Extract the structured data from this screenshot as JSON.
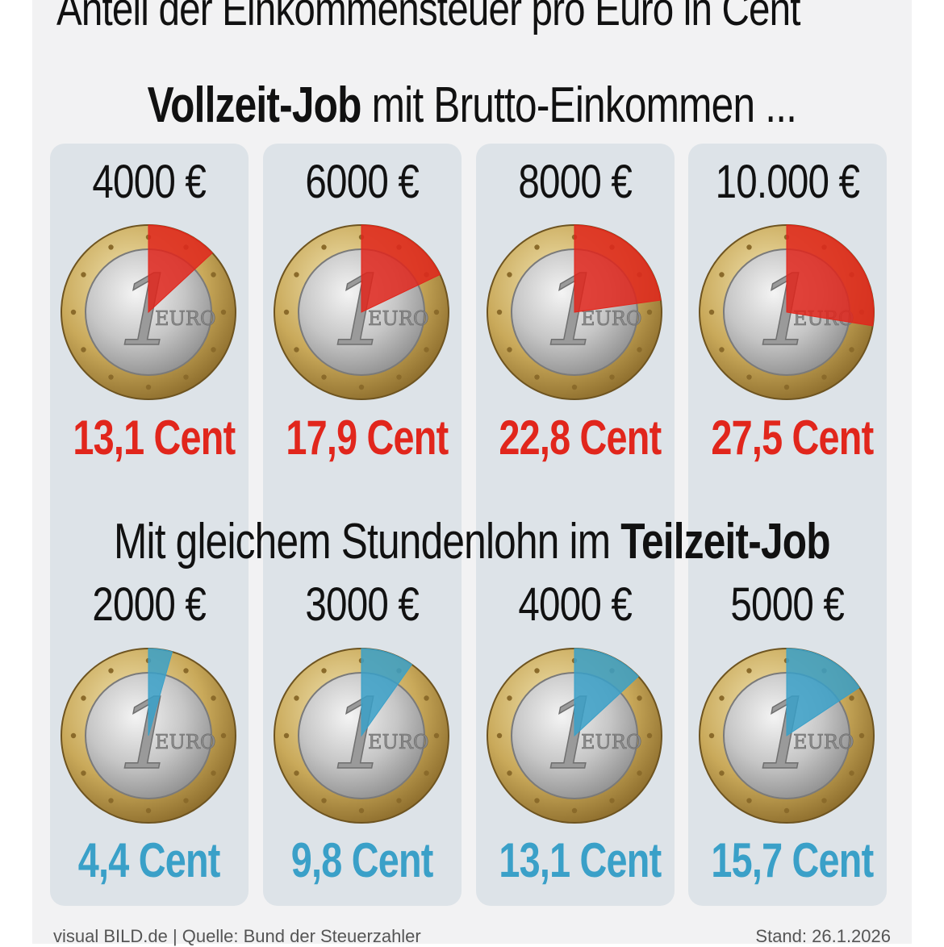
{
  "title": "Anteil der Einkommensteuer pro Euro in Cent",
  "colors": {
    "fulltime": "#e1261c",
    "parttime": "#3aa0c8",
    "column_bg": "#dde3e8"
  },
  "sections": {
    "fulltime": {
      "bold": "Vollzeit-Job",
      "rest": " mit Brutto-Einkommen ..."
    },
    "parttime": {
      "rest": "Mit gleichem Stundenlohn im ",
      "bold": "Teilzeit-Job"
    }
  },
  "chart_data": [
    {
      "type": "pie",
      "title": "Vollzeit-Job mit Brutto-Einkommen ...",
      "categories": [
        "4000 €",
        "6000 €",
        "8000 €",
        "10.000 €"
      ],
      "values": [
        13.1,
        17.9,
        22.8,
        27.5
      ],
      "labels": [
        "13,1 Cent",
        "17,9 Cent",
        "22,8 Cent",
        "27,5 Cent"
      ],
      "unit": "Cent pro Euro",
      "total": 100
    },
    {
      "type": "pie",
      "title": "Mit gleichem Stundenlohn im Teilzeit-Job",
      "categories": [
        "2000 €",
        "3000 €",
        "4000 €",
        "5000 €"
      ],
      "values": [
        4.4,
        9.8,
        13.1,
        15.7
      ],
      "labels": [
        "4,4 Cent",
        "9,8 Cent",
        "13,1 Cent",
        "15,7 Cent"
      ],
      "unit": "Cent pro Euro",
      "total": 100
    }
  ],
  "coin": {
    "numeral": "1",
    "word": "EURO"
  },
  "footer": {
    "source": "visual BILD.de | Quelle: Bund der Steuerzahler",
    "date": "Stand: 26.1.2026"
  }
}
